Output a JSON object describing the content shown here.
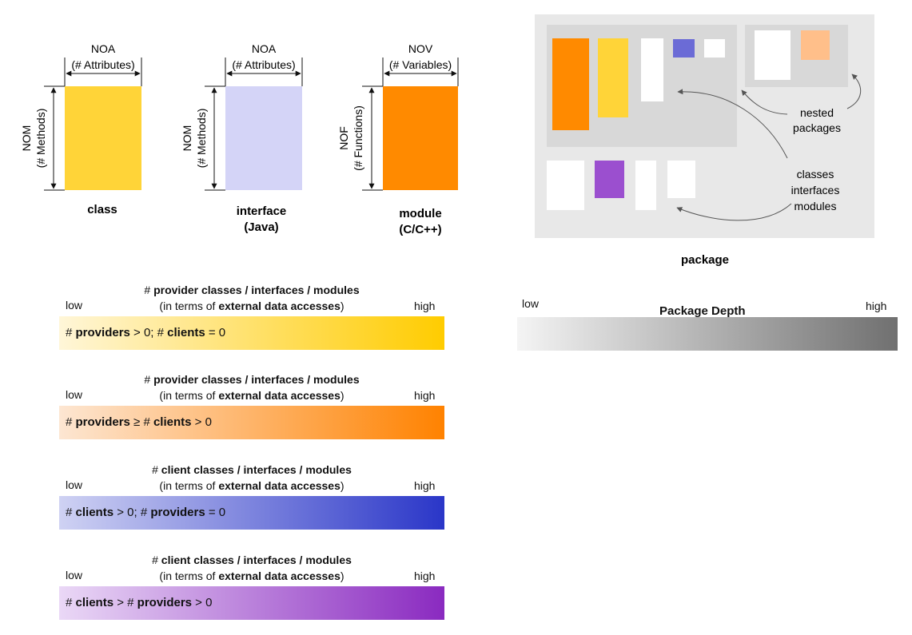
{
  "shapes": [
    {
      "top_label": "NOA",
      "top_sub": "(# Attributes)",
      "side_label": "NOM",
      "side_sub": "(# Methods)",
      "name_line1": "class",
      "name_line2": "",
      "color": "#ffd438"
    },
    {
      "top_label": "NOA",
      "top_sub": "(# Attributes)",
      "side_label": "NOM",
      "side_sub": "(# Methods)",
      "name_line1": "interface",
      "name_line2": "(Java)",
      "color": "#d4d4f7"
    },
    {
      "top_label": "NOV",
      "top_sub": "(# Variables)",
      "side_label": "NOF",
      "side_sub": "(# Functions)",
      "name_line1": "module",
      "name_line2": "(C/C++)",
      "color": "#ff8a00"
    }
  ],
  "package": {
    "label": "package",
    "nested_label_1": "nested",
    "nested_label_2": "packages",
    "classes_label_1": "classes",
    "classes_label_2": "interfaces",
    "classes_label_3": "modules",
    "colors": {
      "outer": "#e8e8e8",
      "inner": "#d8d8d8",
      "orange": "#ff8a00",
      "yellow": "#ffd438",
      "blue": "#6b6bd6",
      "purple": "#9b4fcf",
      "peach": "#ffbf8a"
    }
  },
  "legends": [
    {
      "title_pre": "# ",
      "title_bold": "provider classes / interfaces / modules",
      "sub_pre": "(in terms of ",
      "sub_bold": "external data accesses",
      "sub_post": ")",
      "low": "low",
      "high": "high",
      "bar_parts": [
        "# ",
        "providers",
        " > 0; # ",
        "clients",
        " = 0"
      ],
      "gradient_from": "#fff6d8",
      "gradient_to": "#ffcc00"
    },
    {
      "title_pre": "# ",
      "title_bold": "provider classes / interfaces / modules",
      "sub_pre": "(in terms of ",
      "sub_bold": "external data accesses",
      "sub_post": ")",
      "low": "low",
      "high": "high",
      "bar_parts": [
        "# ",
        "providers",
        " ≥ # ",
        "clients",
        " > 0"
      ],
      "gradient_from": "#fde6d2",
      "gradient_to": "#ff8200"
    },
    {
      "title_pre": "# ",
      "title_bold": "client classes / interfaces / modules",
      "sub_pre": "(in terms of ",
      "sub_bold": "external data accesses",
      "sub_post": ")",
      "low": "low",
      "high": "high",
      "bar_parts": [
        "# ",
        "clients",
        " > 0; # ",
        "providers",
        " = 0"
      ],
      "gradient_from": "#cfd2f3",
      "gradient_to": "#2a36c8"
    },
    {
      "title_pre": "# ",
      "title_bold": "client classes / interfaces / modules",
      "sub_pre": "(in terms of ",
      "sub_bold": "external data accesses",
      "sub_post": ")",
      "low": "low",
      "high": "high",
      "bar_parts": [
        "# ",
        "clients",
        " > # ",
        "providers",
        " > 0"
      ],
      "gradient_from": "#ead8f6",
      "gradient_to": "#8a2ac0"
    }
  ],
  "depth": {
    "low": "low",
    "high": "high",
    "title": "Package Depth",
    "gradient_from": "#f4f4f4",
    "gradient_to": "#707070"
  }
}
